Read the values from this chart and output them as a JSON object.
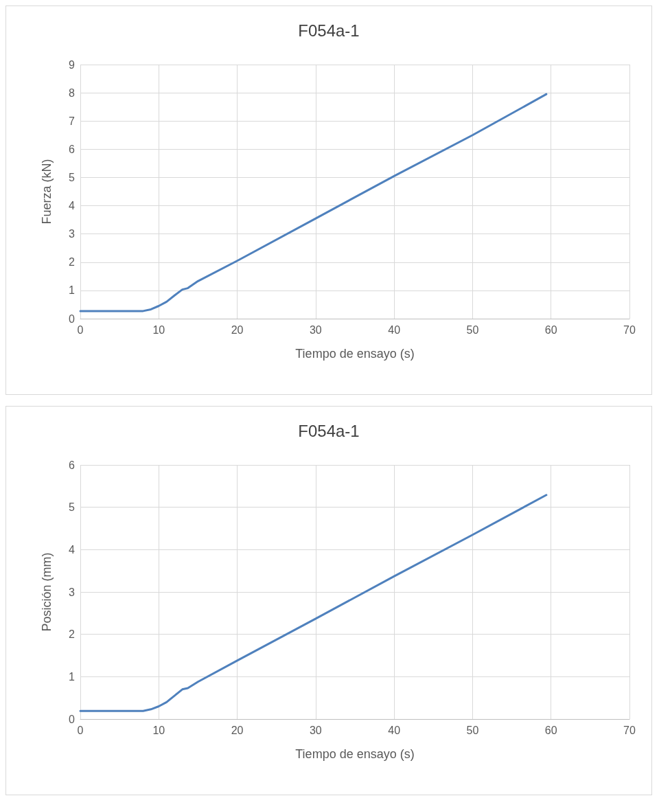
{
  "chart_data": [
    {
      "type": "line",
      "title": "F054a-1",
      "xlabel": "Tiempo de ensayo (s)",
      "ylabel": "Fuerza (kN)",
      "xlim": [
        0,
        70
      ],
      "xticks": [
        0,
        10,
        20,
        30,
        40,
        50,
        60,
        70
      ],
      "ylim": [
        0,
        9
      ],
      "yticks": [
        0,
        1,
        2,
        3,
        4,
        5,
        6,
        7,
        8,
        9
      ],
      "grid": true,
      "marker": "none",
      "line_style": "solid",
      "series": [
        {
          "color": "#4f81bd",
          "x": [
            0,
            8,
            9,
            10,
            11,
            12,
            13,
            13.7,
            15,
            20,
            30,
            40,
            50,
            59.4
          ],
          "values": [
            0.27,
            0.27,
            0.33,
            0.45,
            0.6,
            0.82,
            1.03,
            1.08,
            1.33,
            2.05,
            3.55,
            5.05,
            6.5,
            7.95
          ]
        }
      ]
    },
    {
      "type": "line",
      "title": "F054a-1",
      "xlabel": "Tiempo de ensayo (s)",
      "ylabel": "Posición (mm)",
      "xlim": [
        0,
        70
      ],
      "xticks": [
        0,
        10,
        20,
        30,
        40,
        50,
        60,
        70
      ],
      "ylim": [
        0,
        6
      ],
      "yticks": [
        0,
        1,
        2,
        3,
        4,
        5,
        6
      ],
      "grid": true,
      "marker": "none",
      "line_style": "solid",
      "series": [
        {
          "color": "#4f81bd",
          "x": [
            0,
            8,
            9,
            10,
            11,
            12,
            13,
            13.7,
            15,
            20,
            30,
            40,
            50,
            59.4
          ],
          "values": [
            0.19,
            0.19,
            0.23,
            0.3,
            0.4,
            0.55,
            0.7,
            0.73,
            0.88,
            1.38,
            2.37,
            3.37,
            4.35,
            5.29
          ]
        }
      ]
    }
  ]
}
